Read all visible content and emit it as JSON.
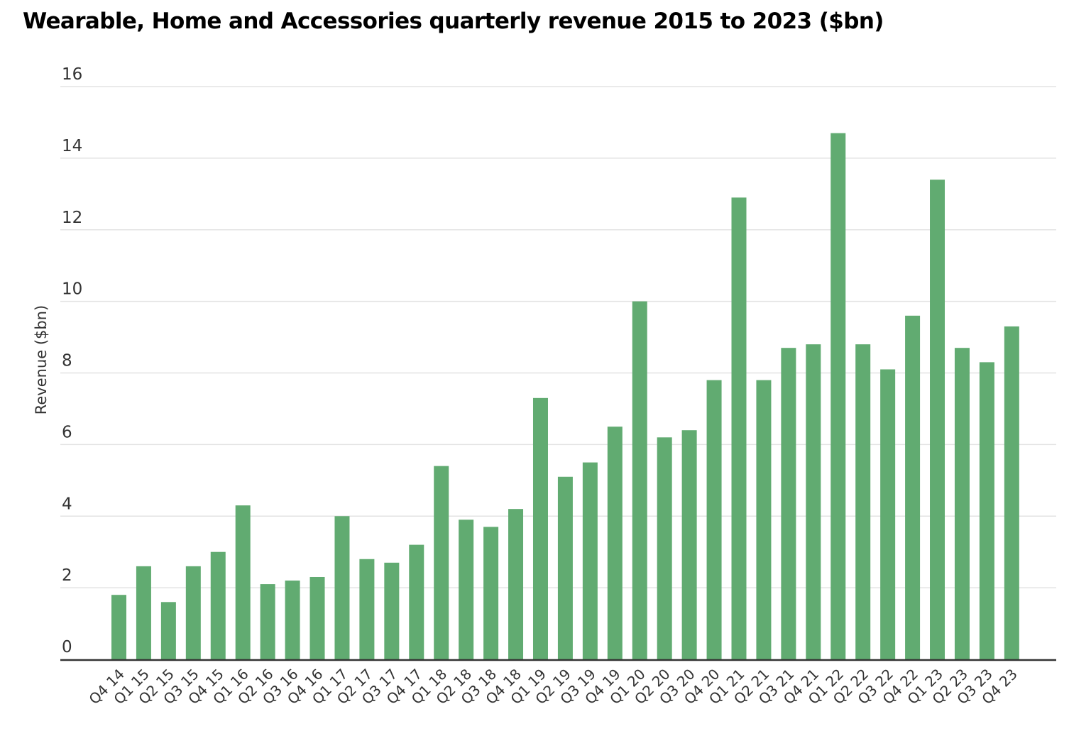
{
  "chart_data": {
    "type": "bar",
    "title": "Wearable, Home and Accessories quarterly revenue 2015 to 2023 ($bn)",
    "xlabel": "",
    "ylabel": "Revenue ($bn)",
    "ylim": [
      0,
      16
    ],
    "yticks": [
      0,
      2,
      4,
      6,
      8,
      10,
      12,
      14,
      16
    ],
    "grid": true,
    "bar_color": "#61ab71",
    "categories": [
      "Q4 14",
      "Q1 15",
      "Q2 15",
      "Q3 15",
      "Q4 15",
      "Q1 16",
      "Q2 16",
      "Q3 16",
      "Q4 16",
      "Q1 17",
      "Q2 17",
      "Q3 17",
      "Q4 17",
      "Q1 18",
      "Q2 18",
      "Q3 18",
      "Q4 18",
      "Q1 19",
      "Q2 19",
      "Q3 19",
      "Q4 19",
      "Q1 20",
      "Q2 20",
      "Q3 20",
      "Q4 20",
      "Q1 21",
      "Q2 21",
      "Q3 21",
      "Q4 21",
      "Q1 22",
      "Q2 22",
      "Q3 22",
      "Q4 22",
      "Q1 23",
      "Q2 23",
      "Q3 23",
      "Q4 23"
    ],
    "values": [
      1.8,
      2.6,
      1.6,
      2.6,
      3.0,
      4.3,
      2.1,
      2.2,
      2.3,
      4.0,
      2.8,
      2.7,
      3.2,
      5.4,
      3.9,
      3.7,
      4.2,
      7.3,
      5.1,
      5.5,
      6.5,
      10.0,
      6.2,
      6.4,
      7.8,
      12.9,
      7.8,
      8.7,
      8.8,
      14.7,
      8.8,
      8.1,
      9.6,
      13.4,
      8.7,
      8.3,
      9.3
    ]
  }
}
